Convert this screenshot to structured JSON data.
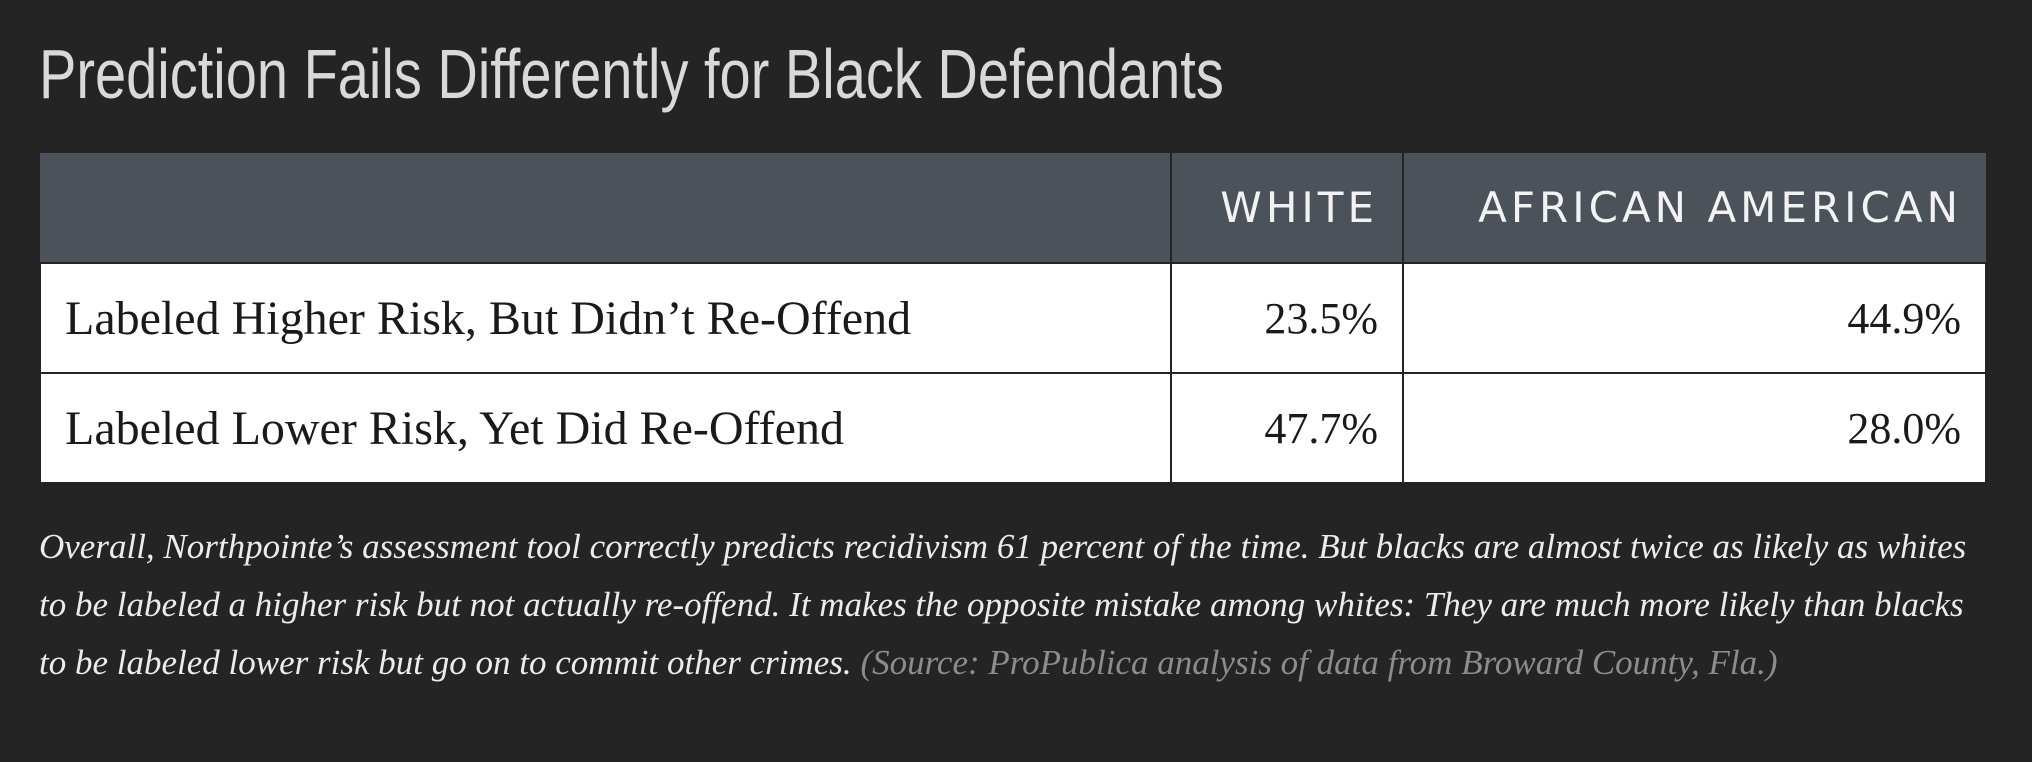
{
  "title": "Prediction Fails Differently for Black Defendants",
  "table": {
    "columns": [
      "WHITE",
      "AFRICAN AMERICAN"
    ],
    "rows": [
      [
        "Labeled Higher Risk, But Didn’t Re-Offend",
        "23.5%",
        "44.9%"
      ],
      [
        "Labeled Lower Risk, Yet Did Re-Offend",
        "47.7%",
        "28.0%"
      ]
    ]
  },
  "caption": {
    "text": "Overall, Northpointe’s assessment tool correctly predicts recidivism 61 percent of the time. But blacks are almost twice as likely as whites to be labeled a higher risk but not actually re-offend. It makes the opposite mistake among whites: They are much more likely than blacks to be labeled lower risk but go on to commit other crimes.",
    "source": "(Source: ProPublica analysis of data from Broward County, Fla.)"
  }
}
